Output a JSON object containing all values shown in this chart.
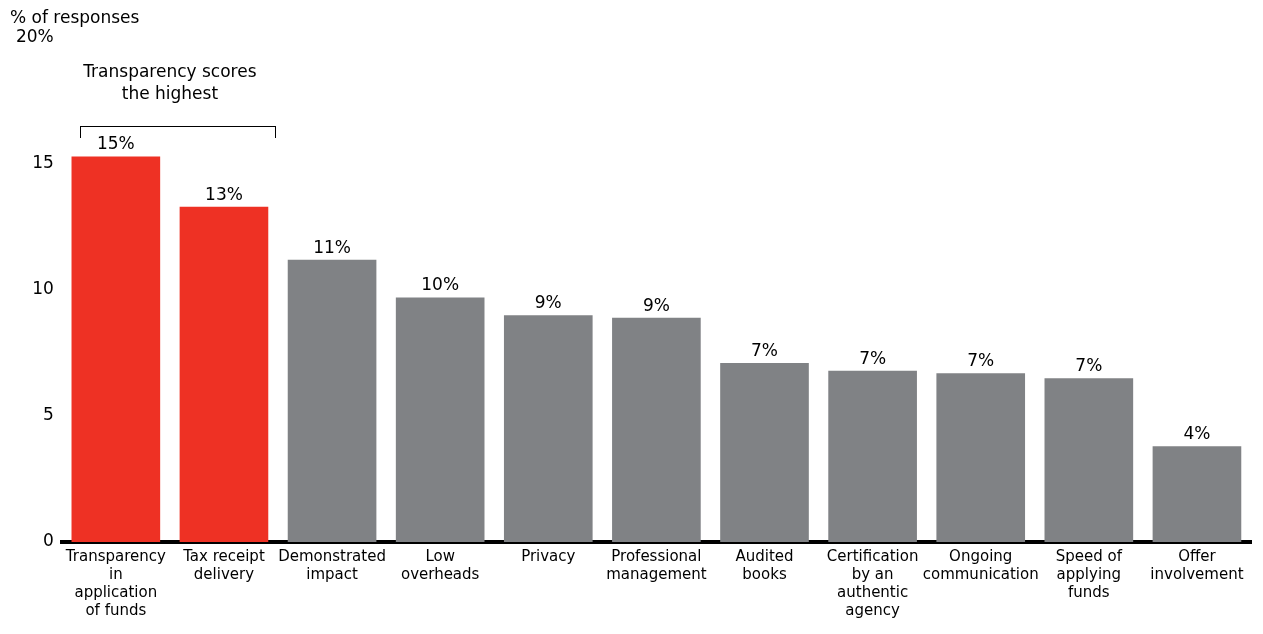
{
  "chart_data": {
    "type": "bar",
    "ylabel": "% of responses",
    "categories": [
      "Transparency in application of funds",
      "Tax receipt delivery",
      "Demonstrated impact",
      "Low overheads",
      "Privacy",
      "Professional management",
      "Audited books",
      "Certification by an authentic agency",
      "Ongoing communication",
      "Speed of applying funds",
      "Offer involvement"
    ],
    "values": [
      15.3,
      13.3,
      11.2,
      9.7,
      9.0,
      8.9,
      7.1,
      6.8,
      6.7,
      6.5,
      3.8
    ],
    "value_labels": [
      "15%",
      "13%",
      "11%",
      "10%",
      "9%",
      "9%",
      "7%",
      "7%",
      "7%",
      "7%",
      "4%"
    ],
    "colors": [
      "#ee3124",
      "#ee3124",
      "#808285",
      "#808285",
      "#808285",
      "#808285",
      "#808285",
      "#808285",
      "#808285",
      "#808285",
      "#808285"
    ],
    "ylim": [
      0,
      20
    ],
    "yticks": [
      0,
      5,
      10,
      15,
      {
        "value": 20,
        "label": "20%"
      }
    ],
    "grid": false,
    "legend": false,
    "annotations": [
      "Transparency scores the highest"
    ]
  }
}
